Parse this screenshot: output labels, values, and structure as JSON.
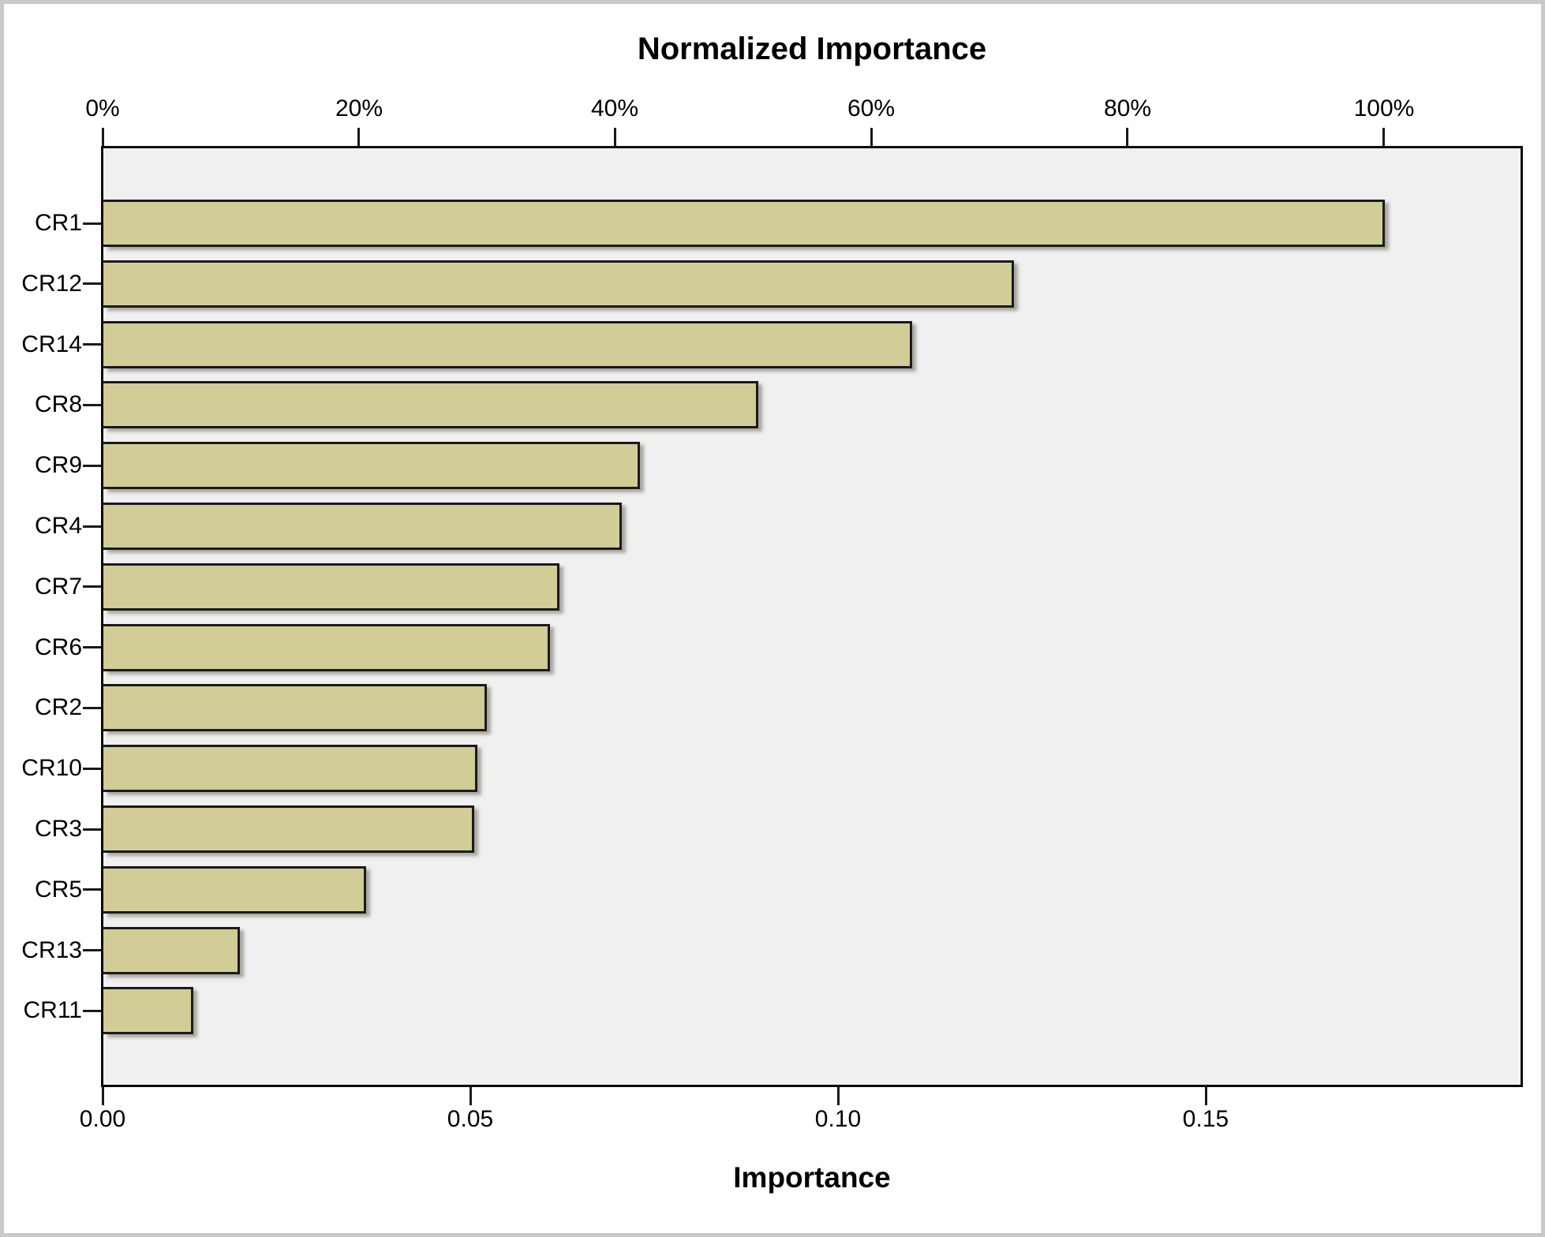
{
  "chart_data": {
    "type": "bar",
    "orientation": "horizontal",
    "title": "Normalized Importance",
    "top_axis": {
      "label": "Normalized Importance",
      "unit": "percent of max importance",
      "ticks": [
        "0%",
        "20%",
        "40%",
        "60%",
        "80%",
        "100%"
      ],
      "tick_values": [
        0,
        20,
        40,
        60,
        80,
        100
      ]
    },
    "bottom_axis": {
      "label": "Importance",
      "ticks": [
        "0.00",
        "0.05",
        "0.10",
        "0.15"
      ],
      "tick_values": [
        0.0,
        0.05,
        0.1,
        0.15
      ],
      "xlim": [
        0,
        0.193
      ]
    },
    "max_importance": 0.1742,
    "categories": [
      "CR1",
      "CR12",
      "CR14",
      "CR8",
      "CR9",
      "CR4",
      "CR7",
      "CR6",
      "CR2",
      "CR10",
      "CR3",
      "CR5",
      "CR13",
      "CR11"
    ],
    "series": [
      {
        "name": "Importance",
        "values": [
          0.1742,
          0.1238,
          0.11,
          0.0891,
          0.073,
          0.0705,
          0.062,
          0.0607,
          0.0521,
          0.0509,
          0.0504,
          0.0357,
          0.0186,
          0.0122
        ]
      },
      {
        "name": "Normalized Importance (%)",
        "values": [
          100.0,
          71.1,
          63.1,
          51.1,
          41.9,
          40.5,
          35.6,
          34.8,
          29.9,
          29.2,
          28.9,
          20.5,
          10.7,
          7.0
        ]
      }
    ],
    "legend": "none",
    "grid": "off",
    "colors": {
      "bar_fill": "#d2cc96",
      "bar_border": "#1a1a1a",
      "plot_background": "#f0f0f0",
      "frame": "#0a0a0a",
      "canvas_border": "#c9c9c9",
      "text": "#000000"
    }
  }
}
